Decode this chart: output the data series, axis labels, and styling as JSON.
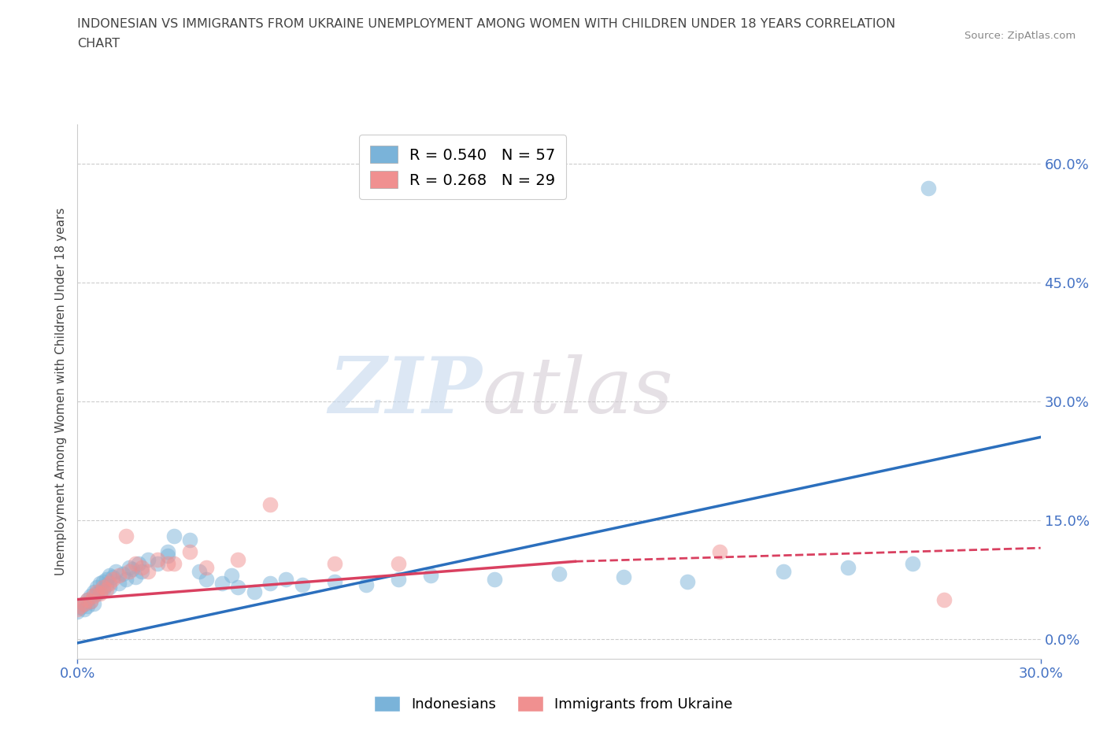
{
  "title_line1": "INDONESIAN VS IMMIGRANTS FROM UKRAINE UNEMPLOYMENT AMONG WOMEN WITH CHILDREN UNDER 18 YEARS CORRELATION",
  "title_line2": "CHART",
  "source": "Source: ZipAtlas.com",
  "ylabel": "Unemployment Among Women with Children Under 18 years",
  "xlim": [
    0.0,
    0.3
  ],
  "ylim": [
    -0.025,
    0.65
  ],
  "yticks": [
    0.0,
    0.15,
    0.3,
    0.45,
    0.6
  ],
  "ytick_labels": [
    "0.0%",
    "15.0%",
    "30.0%",
    "45.0%",
    "60.0%"
  ],
  "xticks": [
    0.0,
    0.3
  ],
  "xtick_labels": [
    "0.0%",
    "30.0%"
  ],
  "legend_entries": [
    {
      "label": "R = 0.540   N = 57",
      "color": "#a8c8e8"
    },
    {
      "label": "R = 0.268   N = 29",
      "color": "#f4a8b0"
    }
  ],
  "watermark_zip": "ZIP",
  "watermark_atlas": "atlas",
  "indonesian_scatter_x": [
    0.0,
    0.001,
    0.002,
    0.002,
    0.003,
    0.003,
    0.004,
    0.004,
    0.005,
    0.005,
    0.006,
    0.006,
    0.007,
    0.007,
    0.008,
    0.008,
    0.009,
    0.009,
    0.01,
    0.01,
    0.011,
    0.012,
    0.013,
    0.014,
    0.015,
    0.016,
    0.017,
    0.018,
    0.019,
    0.02,
    0.022,
    0.025,
    0.028,
    0.03,
    0.035,
    0.04,
    0.045,
    0.05,
    0.055,
    0.06,
    0.065,
    0.07,
    0.08,
    0.09,
    0.1,
    0.11,
    0.13,
    0.15,
    0.17,
    0.19,
    0.22,
    0.24,
    0.26,
    0.028,
    0.038,
    0.048,
    0.265
  ],
  "indonesian_scatter_y": [
    0.035,
    0.04,
    0.038,
    0.045,
    0.042,
    0.05,
    0.048,
    0.055,
    0.045,
    0.06,
    0.058,
    0.065,
    0.06,
    0.07,
    0.062,
    0.072,
    0.068,
    0.075,
    0.065,
    0.08,
    0.078,
    0.085,
    0.07,
    0.082,
    0.075,
    0.09,
    0.088,
    0.078,
    0.095,
    0.085,
    0.1,
    0.095,
    0.11,
    0.13,
    0.125,
    0.075,
    0.07,
    0.065,
    0.06,
    0.07,
    0.075,
    0.068,
    0.072,
    0.068,
    0.075,
    0.08,
    0.075,
    0.082,
    0.078,
    0.072,
    0.085,
    0.09,
    0.095,
    0.105,
    0.085,
    0.08,
    0.57
  ],
  "ukraine_scatter_x": [
    0.0,
    0.001,
    0.002,
    0.003,
    0.004,
    0.005,
    0.006,
    0.007,
    0.008,
    0.009,
    0.01,
    0.011,
    0.013,
    0.015,
    0.016,
    0.018,
    0.02,
    0.022,
    0.025,
    0.028,
    0.03,
    0.035,
    0.04,
    0.05,
    0.06,
    0.08,
    0.1,
    0.2,
    0.27
  ],
  "ukraine_scatter_y": [
    0.038,
    0.042,
    0.045,
    0.05,
    0.048,
    0.055,
    0.06,
    0.058,
    0.065,
    0.062,
    0.07,
    0.075,
    0.08,
    0.13,
    0.085,
    0.095,
    0.09,
    0.085,
    0.1,
    0.095,
    0.095,
    0.11,
    0.09,
    0.1,
    0.17,
    0.095,
    0.095,
    0.11,
    0.05
  ],
  "trend_indonesian": {
    "x_start": 0.0,
    "x_end": 0.3,
    "y_start": -0.005,
    "y_end": 0.255
  },
  "trend_ukraine_solid": {
    "x_start": 0.0,
    "x_end": 0.155,
    "y_start": 0.05,
    "y_end": 0.098
  },
  "trend_ukraine_dashed": {
    "x_start": 0.155,
    "x_end": 0.3,
    "y_start": 0.098,
    "y_end": 0.115
  },
  "scatter_color_indonesian": "#7ab3d9",
  "scatter_color_ukraine": "#f09090",
  "trend_color_indonesian": "#2b6fbd",
  "trend_color_ukraine": "#d94060",
  "background_color": "#ffffff",
  "grid_color": "#cccccc"
}
